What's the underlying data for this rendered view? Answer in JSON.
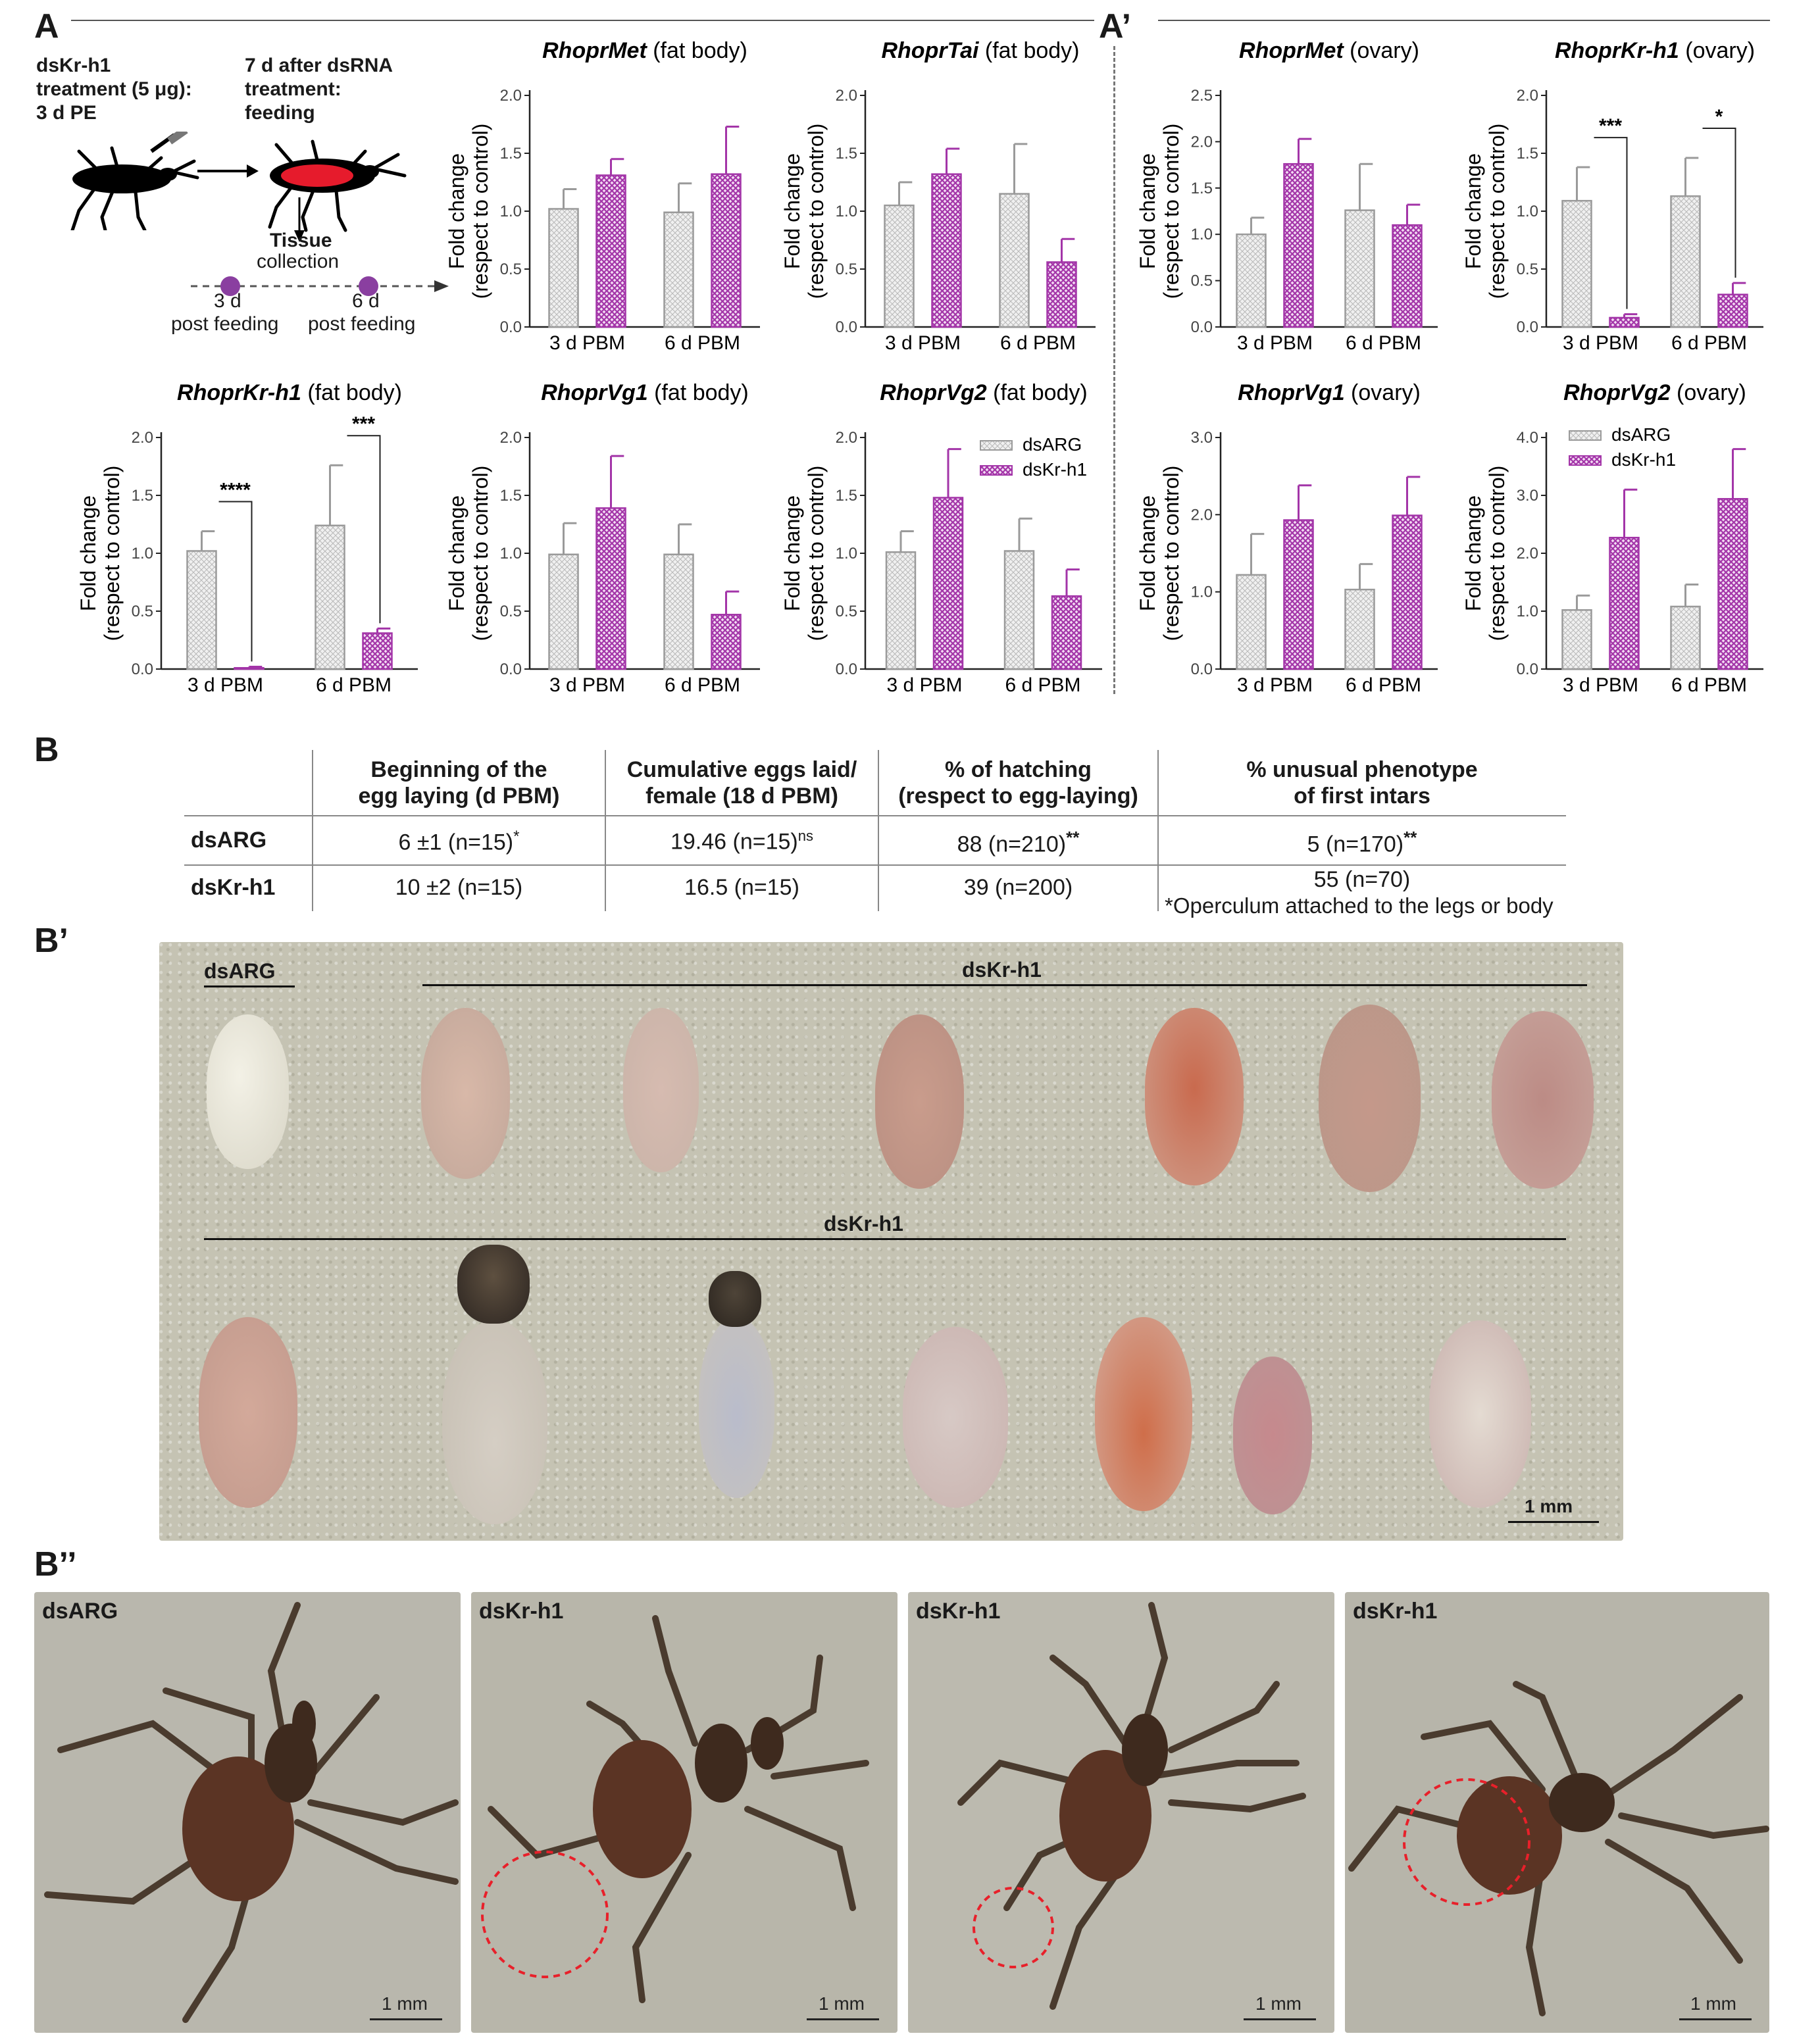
{
  "panels": {
    "a": "A",
    "a_prime": "A’",
    "b": "B",
    "b_prime": "B’",
    "b_double": "B’’"
  },
  "workflow": {
    "treatment_line1": "dsKr-h1",
    "treatment_line2": "treatment (5 μg):",
    "treatment_line3": "3 d PE",
    "after_line1": "7 d after dsRNA",
    "after_line2": "treatment:",
    "after_line3": "feeding",
    "tissue": "Tissue",
    "collection": "collection",
    "point1_a": "3 d",
    "point1_b": "post feeding",
    "point2_a": "6 d",
    "point2_b": "post feeding"
  },
  "colors": {
    "dsARG": "#d9d9d9",
    "dsKr_h1": "#a335a8",
    "point": "#8a3fa0",
    "dash": "#7a7a7a"
  },
  "legend": {
    "dsARG": "dsARG",
    "dsKr_h1": "dsKr-h1"
  },
  "y_axis_label_1": "Fold change",
  "y_axis_label_2": "(respect to control)",
  "chart_data": [
    {
      "id": "met_fb",
      "type": "bar",
      "title_gene": "RhoprMet",
      "title_tissue": " (fat body)",
      "categories": [
        "3 d PBM",
        "6 d PBM"
      ],
      "series": [
        {
          "name": "dsARG",
          "values": [
            1.02,
            0.99
          ],
          "errors": [
            0.17,
            0.25
          ]
        },
        {
          "name": "dsKr-h1",
          "values": [
            1.31,
            1.32
          ],
          "errors": [
            0.14,
            0.41
          ]
        }
      ],
      "ylim": [
        0,
        2.0
      ],
      "yticks": [
        "0.0",
        "0.5",
        "1.0",
        "1.5",
        "2.0"
      ],
      "sig": []
    },
    {
      "id": "tai_fb",
      "type": "bar",
      "title_gene": "RhoprTai",
      "title_tissue": " (fat body)",
      "categories": [
        "3 d PBM",
        "6 d PBM"
      ],
      "series": [
        {
          "name": "dsARG",
          "values": [
            1.05,
            1.15
          ],
          "errors": [
            0.2,
            0.43
          ]
        },
        {
          "name": "dsKr-h1",
          "values": [
            1.32,
            0.56
          ],
          "errors": [
            0.22,
            0.2
          ]
        }
      ],
      "ylim": [
        0,
        2.0
      ],
      "yticks": [
        "0.0",
        "0.5",
        "1.0",
        "1.5",
        "2.0"
      ],
      "sig": []
    },
    {
      "id": "met_ov",
      "type": "bar",
      "title_gene": "RhoprMet",
      "title_tissue": " (ovary)",
      "categories": [
        "3 d PBM",
        "6 d PBM"
      ],
      "series": [
        {
          "name": "dsARG",
          "values": [
            1.0,
            1.26
          ],
          "errors": [
            0.18,
            0.5
          ]
        },
        {
          "name": "dsKr-h1",
          "values": [
            1.76,
            1.1
          ],
          "errors": [
            0.27,
            0.22
          ]
        }
      ],
      "ylim": [
        0,
        2.5
      ],
      "yticks": [
        "0.0",
        "0.5",
        "1.0",
        "1.5",
        "2.0",
        "2.5"
      ],
      "sig": []
    },
    {
      "id": "kr_ov",
      "type": "bar",
      "title_gene": "RhoprKr-h1",
      "title_tissue": " (ovary)",
      "categories": [
        "3 d PBM",
        "6 d PBM"
      ],
      "series": [
        {
          "name": "dsARG",
          "values": [
            1.09,
            1.13
          ],
          "errors": [
            0.29,
            0.33
          ]
        },
        {
          "name": "dsKr-h1",
          "values": [
            0.08,
            0.28
          ],
          "errors": [
            0.03,
            0.1
          ]
        }
      ],
      "ylim": [
        0,
        2.0
      ],
      "yticks": [
        "0.0",
        "0.5",
        "1.0",
        "1.5",
        "2.0"
      ],
      "sig": [
        "***",
        "*"
      ]
    },
    {
      "id": "kr_fb",
      "type": "bar",
      "title_gene": "RhoprKr-h1",
      "title_tissue": " (fat body)",
      "categories": [
        "3 d PBM",
        "6 d PBM"
      ],
      "series": [
        {
          "name": "dsARG",
          "values": [
            1.02,
            1.24
          ],
          "errors": [
            0.17,
            0.52
          ]
        },
        {
          "name": "dsKr-h1",
          "values": [
            0.01,
            0.31
          ],
          "errors": [
            0.01,
            0.04
          ]
        }
      ],
      "ylim": [
        0,
        2.0
      ],
      "yticks": [
        "0.0",
        "0.5",
        "1.0",
        "1.5",
        "2.0"
      ],
      "sig": [
        "****",
        "***"
      ]
    },
    {
      "id": "vg1_fb",
      "type": "bar",
      "title_gene": "RhoprVg1",
      "title_tissue": " (fat body)",
      "categories": [
        "3 d PBM",
        "6 d PBM"
      ],
      "series": [
        {
          "name": "dsARG",
          "values": [
            0.99,
            0.99
          ],
          "errors": [
            0.27,
            0.26
          ]
        },
        {
          "name": "dsKr-h1",
          "values": [
            1.39,
            0.47
          ],
          "errors": [
            0.45,
            0.2
          ]
        }
      ],
      "ylim": [
        0,
        2.0
      ],
      "yticks": [
        "0.0",
        "0.5",
        "1.0",
        "1.5",
        "2.0"
      ],
      "sig": []
    },
    {
      "id": "vg2_fb",
      "type": "bar",
      "title_gene": "RhoprVg2",
      "title_tissue": " (fat body)",
      "categories": [
        "3 d PBM",
        "6 d PBM"
      ],
      "series": [
        {
          "name": "dsARG",
          "values": [
            1.01,
            1.02
          ],
          "errors": [
            0.18,
            0.28
          ]
        },
        {
          "name": "dsKr-h1",
          "values": [
            1.48,
            0.63
          ],
          "errors": [
            0.42,
            0.23
          ]
        }
      ],
      "ylim": [
        0,
        2.0
      ],
      "yticks": [
        "0.0",
        "0.5",
        "1.0",
        "1.5",
        "2.0"
      ],
      "sig": [],
      "legend": "top-right"
    },
    {
      "id": "vg1_ov",
      "type": "bar",
      "title_gene": "RhoprVg1",
      "title_tissue": " (ovary)",
      "categories": [
        "3 d PBM",
        "6 d PBM"
      ],
      "series": [
        {
          "name": "dsARG",
          "values": [
            1.22,
            1.03
          ],
          "errors": [
            0.53,
            0.33
          ]
        },
        {
          "name": "dsKr-h1",
          "values": [
            1.93,
            1.99
          ],
          "errors": [
            0.45,
            0.5
          ]
        }
      ],
      "ylim": [
        0,
        3.0
      ],
      "yticks": [
        "0.0",
        "1.0",
        "2.0",
        "3.0"
      ],
      "sig": []
    },
    {
      "id": "vg2_ov",
      "type": "bar",
      "title_gene": "RhoprVg2",
      "title_tissue": " (ovary)",
      "categories": [
        "3 d PBM",
        "6 d PBM"
      ],
      "series": [
        {
          "name": "dsARG",
          "values": [
            1.02,
            1.08
          ],
          "errors": [
            0.25,
            0.38
          ]
        },
        {
          "name": "dsKr-h1",
          "values": [
            2.27,
            2.94
          ],
          "errors": [
            0.83,
            0.86
          ]
        }
      ],
      "ylim": [
        0,
        4.0
      ],
      "yticks": [
        "0.0",
        "1.0",
        "2.0",
        "3.0",
        "4.0"
      ],
      "sig": [],
      "legend": "top-left"
    }
  ],
  "table": {
    "headers": [
      "",
      "Beginning of the egg laying (d PBM)",
      "Cumulative eggs laid/ female (18 d PBM)",
      "% of hatching (respect to egg-laying)",
      "% unusual phenotype of first intars"
    ],
    "header_lines": [
      [
        "Beginning of the",
        "egg laying (d PBM)"
      ],
      [
        "Cumulative eggs laid/",
        "female (18 d PBM)"
      ],
      [
        "% of hatching",
        "(respect to egg-laying)"
      ],
      [
        "% unusual phenotype",
        "of first intars"
      ]
    ],
    "rows": [
      {
        "label": "dsARG",
        "c1": "6 ±1 (n=15)",
        "c1_sup": "*",
        "c2": "19.46 (n=15)",
        "c2_sup": "ns",
        "c3": "88 (n=210)",
        "c3_sup": "**",
        "c4": "5 (n=170)",
        "c4_sup": "**"
      },
      {
        "label": "dsKr-h1",
        "c1": "10 ±2 (n=15)",
        "c2": "16.5 (n=15)",
        "c3": "39 (n=200)",
        "c4": "55 (n=70)",
        "c4_note": "*Operculum attached to the legs or body"
      }
    ]
  },
  "eggs_photo": {
    "label_dsarg": "dsARG",
    "label_top": "dsKr-h1",
    "label_bottom": "dsKr-h1",
    "scale": "1 mm"
  },
  "nymphs": [
    {
      "label": "dsARG",
      "scale": "1 mm"
    },
    {
      "label": "dsKr-h1",
      "scale": "1 mm"
    },
    {
      "label": "dsKr-h1",
      "scale": "1 mm"
    },
    {
      "label": "dsKr-h1",
      "scale": "1 mm"
    }
  ]
}
